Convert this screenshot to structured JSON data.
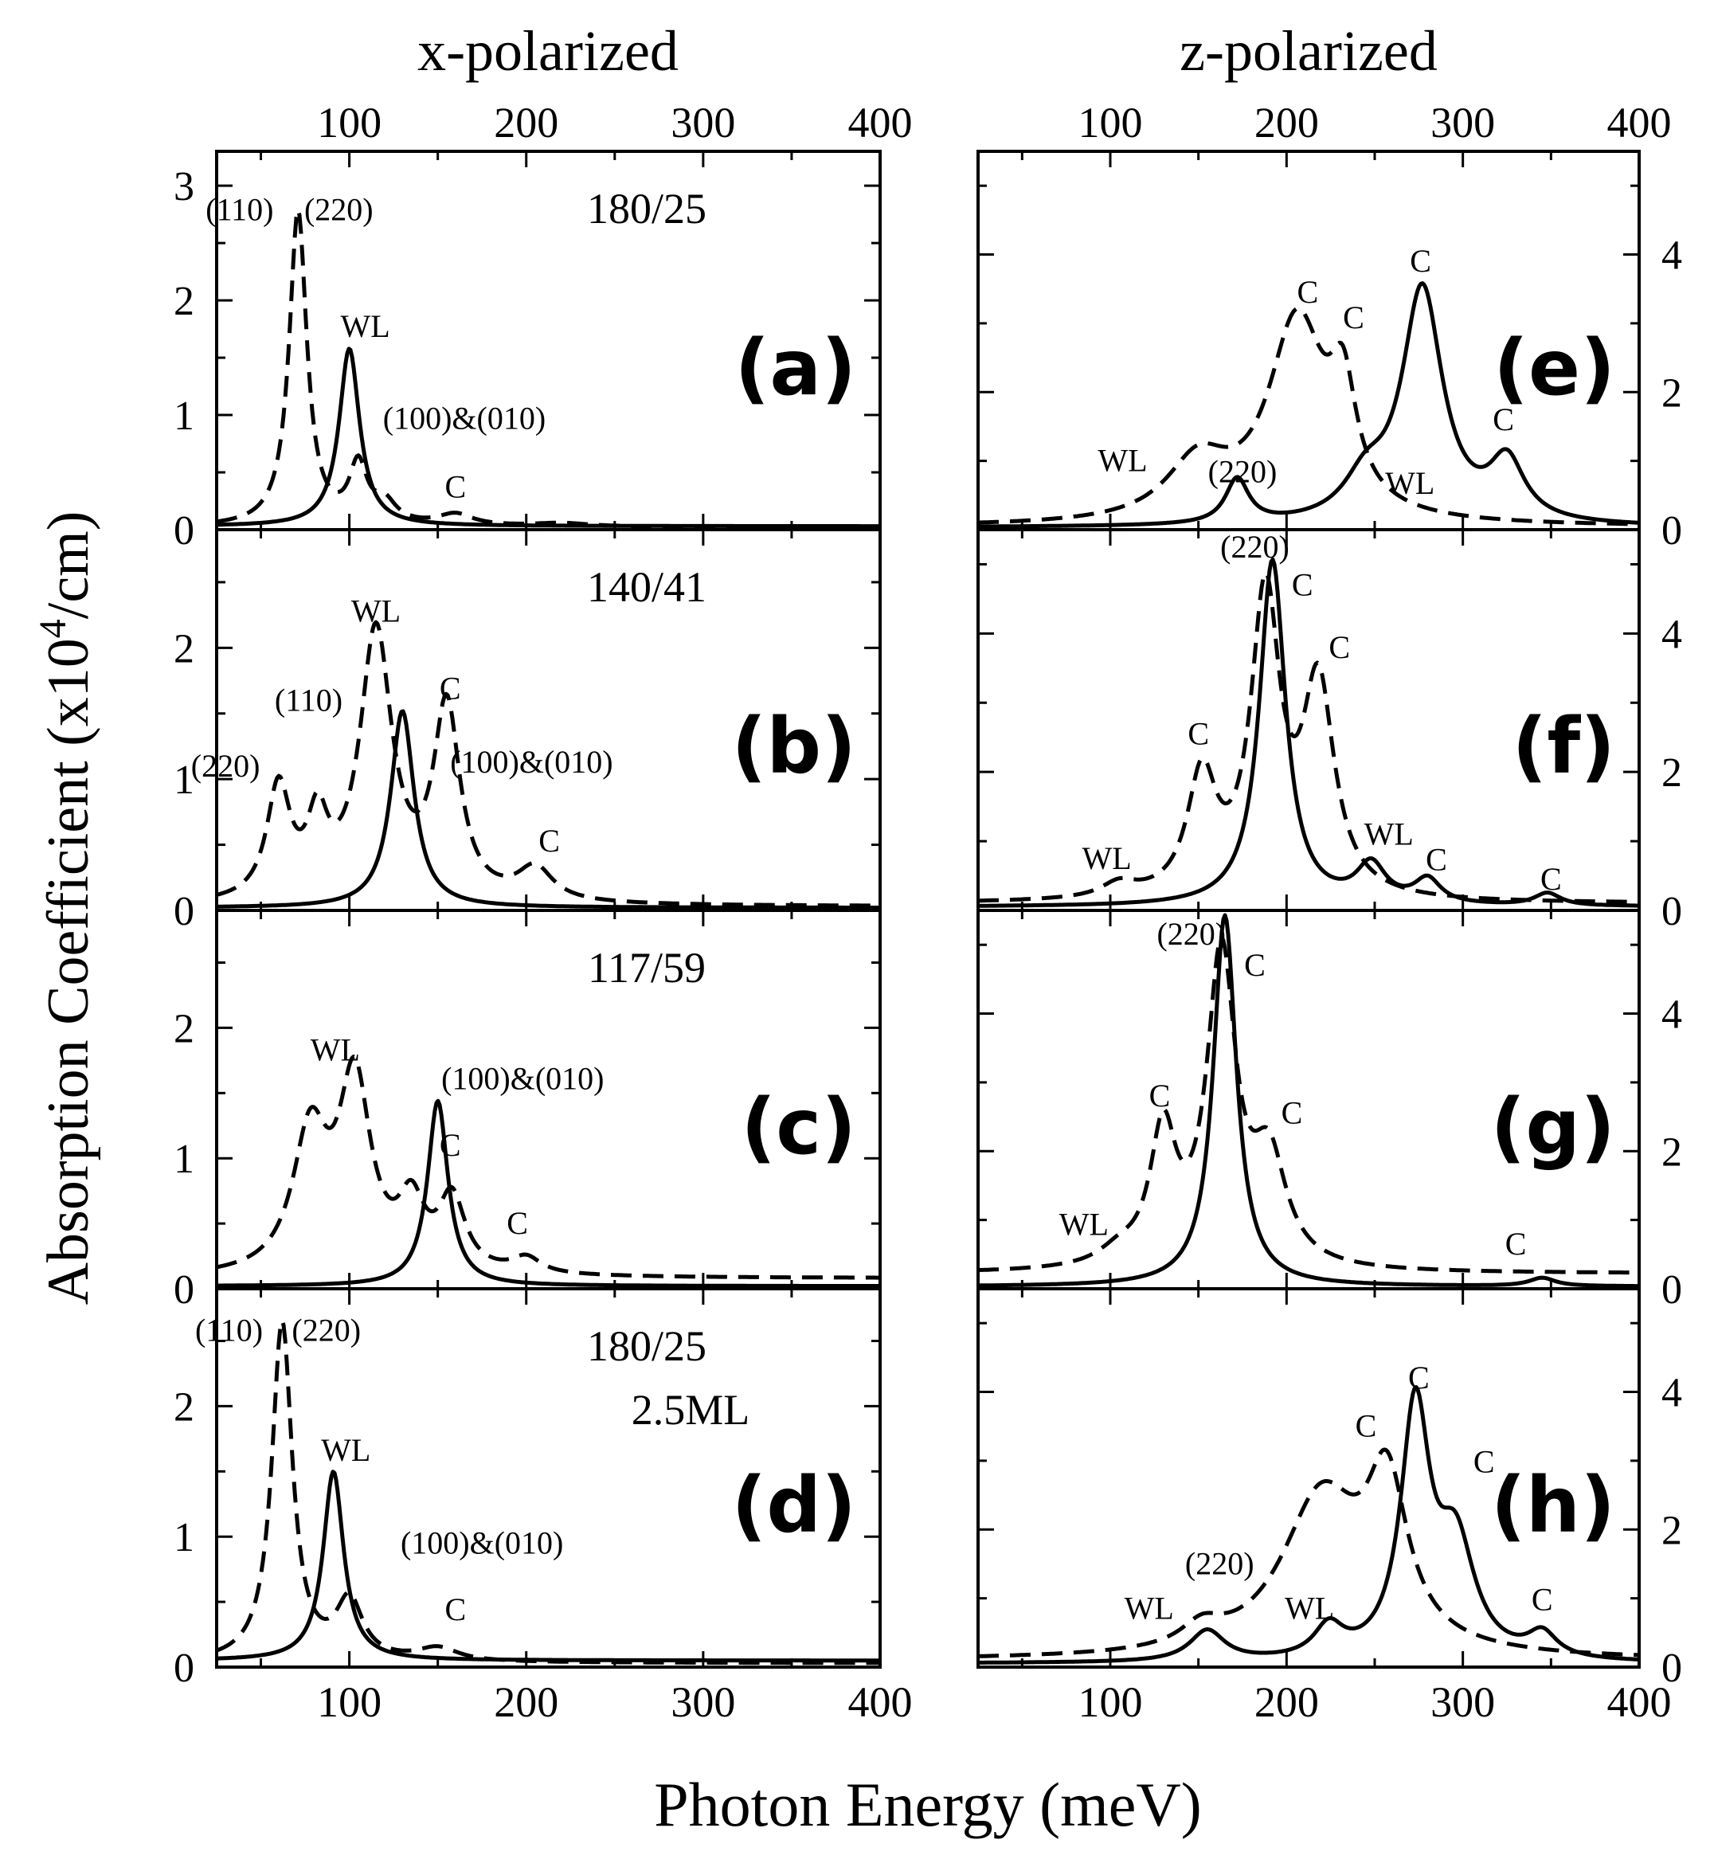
{
  "figure": {
    "ylabel": "Absorption Coefficient (x10⁴/cm)",
    "ylabel_prefix": "Absorption Coefficient (x10",
    "ylabel_sup": "4",
    "ylabel_suffix": "/cm)",
    "xlabel": "Photon Energy (meV)",
    "left_title": "x-polarized",
    "right_title": "z-polarized"
  },
  "chart_data": [
    {
      "type": "line",
      "panel": "(a)",
      "column": "x-polarized",
      "annotation": "180/25",
      "xlim": [
        25,
        400
      ],
      "ylim": [
        0,
        3.3
      ],
      "xticks": [
        100,
        200,
        300,
        400
      ],
      "yticks": [
        0,
        1,
        2,
        3
      ],
      "series": [
        {
          "name": "solid",
          "style": "solid",
          "peaks": [
            {
              "x": 100,
              "h": 1.55,
              "w": 7
            }
          ],
          "baseline": 0.03
        },
        {
          "name": "dashed",
          "style": "dashed",
          "peaks": [
            {
              "x": 71,
              "h": 2.75,
              "w": 6
            },
            {
              "x": 105,
              "h": 0.5,
              "w": 6
            },
            {
              "x": 120,
              "h": 0.18,
              "w": 8
            },
            {
              "x": 160,
              "h": 0.1,
              "w": 12
            },
            {
              "x": 220,
              "h": 0.03,
              "w": 20
            }
          ],
          "baseline": 0.02
        }
      ],
      "labels": [
        "(110)",
        "(220)",
        "WL",
        "(100)&(010)",
        "C"
      ]
    },
    {
      "type": "line",
      "panel": "(b)",
      "column": "x-polarized",
      "annotation": "140/41",
      "xlim": [
        25,
        400
      ],
      "ylim": [
        0,
        2.9
      ],
      "xticks": [
        100,
        200,
        300,
        400
      ],
      "yticks": [
        0,
        1,
        2
      ],
      "series": [
        {
          "name": "solid",
          "style": "solid",
          "peaks": [
            {
              "x": 130,
              "h": 1.5,
              "w": 8
            }
          ],
          "baseline": 0.02
        },
        {
          "name": "dashed",
          "style": "dashed",
          "peaks": [
            {
              "x": 60,
              "h": 0.85,
              "w": 8
            },
            {
              "x": 82,
              "h": 0.55,
              "w": 7
            },
            {
              "x": 115,
              "h": 2.05,
              "w": 11
            },
            {
              "x": 155,
              "h": 1.45,
              "w": 9
            },
            {
              "x": 205,
              "h": 0.25,
              "w": 12
            }
          ],
          "baseline": 0.03
        }
      ],
      "labels": [
        "(220)",
        "(110)",
        "WL",
        "C",
        "(100)&(010)",
        "C"
      ]
    },
    {
      "type": "line",
      "panel": "(c)",
      "column": "x-polarized",
      "annotation": "117/59",
      "xlim": [
        25,
        400
      ],
      "ylim": [
        0,
        2.9
      ],
      "xticks": [
        100,
        200,
        300,
        400
      ],
      "yticks": [
        0,
        1,
        2
      ],
      "series": [
        {
          "name": "solid",
          "style": "solid",
          "peaks": [
            {
              "x": 150,
              "h": 1.42,
              "w": 7
            }
          ],
          "baseline": 0.02
        },
        {
          "name": "dashed",
          "style": "dashed",
          "peaks": [
            {
              "x": 78,
              "h": 1.05,
              "w": 12
            },
            {
              "x": 103,
              "h": 1.45,
              "w": 11
            },
            {
              "x": 135,
              "h": 0.48,
              "w": 9
            },
            {
              "x": 158,
              "h": 0.55,
              "w": 9
            },
            {
              "x": 200,
              "h": 0.12,
              "w": 10
            }
          ],
          "baseline": 0.08
        }
      ],
      "labels": [
        "WL",
        "(100)&(010)",
        "C",
        "C"
      ]
    },
    {
      "type": "line",
      "panel": "(d)",
      "column": "x-polarized",
      "annotation": "180/25",
      "annotation2": "2.5ML",
      "xlim": [
        25,
        400
      ],
      "ylim": [
        0,
        2.9
      ],
      "xticks": [
        100,
        200,
        300,
        400
      ],
      "yticks": [
        0,
        1,
        2
      ],
      "series": [
        {
          "name": "solid",
          "style": "solid",
          "peaks": [
            {
              "x": 91,
              "h": 1.45,
              "w": 7
            }
          ],
          "baseline": 0.05
        },
        {
          "name": "dashed",
          "style": "dashed",
          "peaks": [
            {
              "x": 62,
              "h": 2.6,
              "w": 7
            },
            {
              "x": 100,
              "h": 0.45,
              "w": 9
            },
            {
              "x": 150,
              "h": 0.1,
              "w": 14
            }
          ],
          "baseline": 0.03
        }
      ],
      "labels": [
        "(110)",
        "(220)",
        "WL",
        "(100)&(010)",
        "C"
      ]
    },
    {
      "type": "line",
      "panel": "(e)",
      "column": "z-polarized",
      "xlim": [
        25,
        400
      ],
      "ylim": [
        0,
        5.5
      ],
      "xticks": [
        100,
        200,
        300,
        400
      ],
      "yticks": [
        0,
        2,
        4
      ],
      "series": [
        {
          "name": "solid",
          "style": "solid",
          "peaks": [
            {
              "x": 172,
              "h": 0.65,
              "w": 8
            },
            {
              "x": 245,
              "h": 0.55,
              "w": 15
            },
            {
              "x": 277,
              "h": 3.4,
              "w": 14
            },
            {
              "x": 325,
              "h": 0.85,
              "w": 12
            }
          ],
          "baseline": 0.03
        },
        {
          "name": "dashed",
          "style": "dashed",
          "peaks": [
            {
              "x": 150,
              "h": 0.85,
              "w": 22
            },
            {
              "x": 206,
              "h": 2.9,
              "w": 20
            },
            {
              "x": 232,
              "h": 1.5,
              "w": 9
            }
          ],
          "baseline": 0.04
        }
      ],
      "labels": [
        "WL",
        "(220)",
        "C",
        "C",
        "C",
        "C",
        "WL"
      ]
    },
    {
      "type": "line",
      "panel": "(f)",
      "column": "z-polarized",
      "xlim": [
        25,
        400
      ],
      "ylim": [
        0,
        5.5
      ],
      "xticks": [
        100,
        200,
        300,
        400
      ],
      "yticks": [
        0,
        2,
        4
      ],
      "series": [
        {
          "name": "solid",
          "style": "solid",
          "peaks": [
            {
              "x": 192,
              "h": 5.0,
              "w": 9
            },
            {
              "x": 248,
              "h": 0.55,
              "w": 10
            },
            {
              "x": 280,
              "h": 0.35,
              "w": 9
            },
            {
              "x": 348,
              "h": 0.18,
              "w": 9
            }
          ],
          "baseline": 0.05
        },
        {
          "name": "dashed",
          "style": "dashed",
          "peaks": [
            {
              "x": 152,
              "h": 1.7,
              "w": 10
            },
            {
              "x": 188,
              "h": 4.3,
              "w": 10
            },
            {
              "x": 218,
              "h": 3.0,
              "w": 11
            },
            {
              "x": 105,
              "h": 0.2,
              "w": 12
            }
          ],
          "baseline": 0.1
        }
      ],
      "labels": [
        "(220)",
        "C",
        "C",
        "C",
        "WL",
        "WL",
        "C",
        "C"
      ]
    },
    {
      "type": "line",
      "panel": "(g)",
      "column": "z-polarized",
      "xlim": [
        25,
        400
      ],
      "ylim": [
        0,
        5.5
      ],
      "xticks": [
        100,
        200,
        300,
        400
      ],
      "yticks": [
        0,
        2,
        4
      ],
      "series": [
        {
          "name": "solid",
          "style": "solid",
          "peaks": [
            {
              "x": 165,
              "h": 5.4,
              "w": 8
            },
            {
              "x": 345,
              "h": 0.12,
              "w": 9
            }
          ],
          "baseline": 0.03
        },
        {
          "name": "dashed",
          "style": "dashed",
          "peaks": [
            {
              "x": 130,
              "h": 1.9,
              "w": 9
            },
            {
              "x": 163,
              "h": 4.5,
              "w": 10
            },
            {
              "x": 190,
              "h": 1.5,
              "w": 12
            },
            {
              "x": 105,
              "h": 0.2,
              "w": 14
            }
          ],
          "baseline": 0.22
        }
      ],
      "labels": [
        "(220)",
        "C",
        "C",
        "C",
        "WL",
        "C"
      ]
    },
    {
      "type": "line",
      "panel": "(h)",
      "column": "z-polarized",
      "xlim": [
        25,
        400
      ],
      "ylim": [
        0,
        5.5
      ],
      "xticks": [
        100,
        200,
        300,
        400
      ],
      "yticks": [
        0,
        2,
        4
      ],
      "series": [
        {
          "name": "solid",
          "style": "solid",
          "peaks": [
            {
              "x": 155,
              "h": 0.45,
              "w": 12
            },
            {
              "x": 224,
              "h": 0.45,
              "w": 10
            },
            {
              "x": 273,
              "h": 3.6,
              "w": 10
            },
            {
              "x": 296,
              "h": 1.6,
              "w": 13
            },
            {
              "x": 345,
              "h": 0.35,
              "w": 10
            }
          ],
          "baseline": 0.05
        },
        {
          "name": "dashed",
          "style": "dashed",
          "peaks": [
            {
              "x": 220,
              "h": 2.3,
              "w": 28
            },
            {
              "x": 257,
              "h": 2.2,
              "w": 14
            },
            {
              "x": 152,
              "h": 0.3,
              "w": 14
            }
          ],
          "baseline": 0.1
        }
      ],
      "labels": [
        "(220)",
        "WL",
        "WL",
        "C",
        "C",
        "C",
        "C"
      ]
    }
  ]
}
